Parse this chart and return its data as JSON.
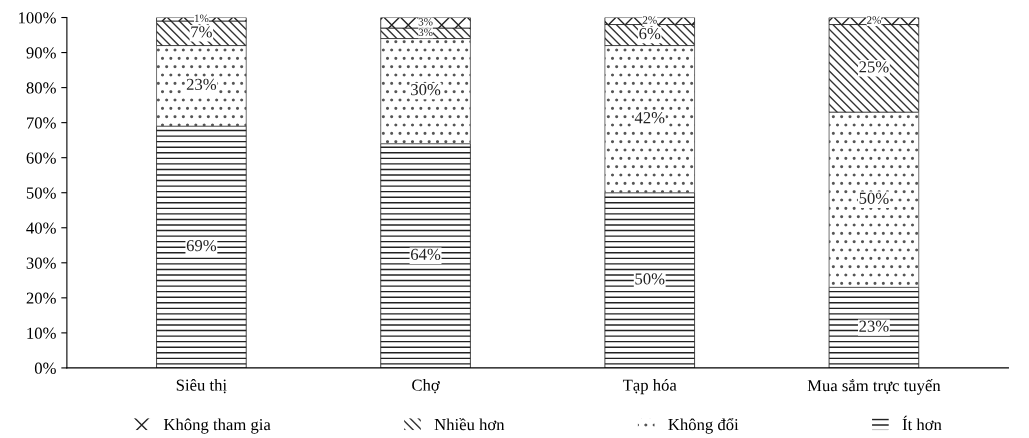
{
  "chart_data": {
    "type": "bar",
    "stacked": true,
    "categories": [
      "Siêu thị",
      "Chợ",
      "Tạp hóa",
      "Mua sắm trực tuyến"
    ],
    "series": [
      {
        "name": "Ít hơn",
        "color": "#222222",
        "values": [
          69,
          64,
          50,
          23
        ],
        "value_labels": [
          "69%",
          "64%",
          "50%",
          "23%"
        ]
      },
      {
        "name": "Không đổi",
        "color": "#555555",
        "values": [
          23,
          30,
          42,
          50
        ],
        "value_labels": [
          "23%",
          "30%",
          "42%",
          "50%"
        ]
      },
      {
        "name": "Nhiều hơn",
        "color": "#333333",
        "values": [
          7,
          3,
          6,
          25
        ],
        "value_labels": [
          "7%",
          "3%",
          "6%",
          "25%"
        ]
      },
      {
        "name": "Không tham gia",
        "color": "#222222",
        "values": [
          1,
          3,
          2,
          2
        ],
        "value_labels": [
          "1%",
          "3%",
          "2%",
          "2%"
        ]
      }
    ],
    "ylim": [
      0,
      100
    ],
    "yticks": [
      {
        "value": 0,
        "label": "0%"
      },
      {
        "value": 10,
        "label": "10%"
      },
      {
        "value": 20,
        "label": "20%"
      },
      {
        "value": 30,
        "label": "30%"
      },
      {
        "value": 40,
        "label": "40%"
      },
      {
        "value": 50,
        "label": "50%"
      },
      {
        "value": 60,
        "label": "60%"
      },
      {
        "value": 70,
        "label": "70%"
      },
      {
        "value": 80,
        "label": "80%"
      },
      {
        "value": 90,
        "label": "90%"
      },
      {
        "value": 100,
        "label": "100%"
      }
    ],
    "grid": false,
    "legend": "bottom"
  }
}
